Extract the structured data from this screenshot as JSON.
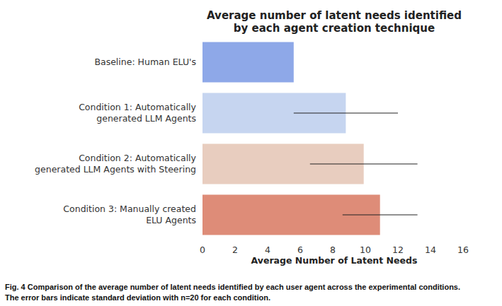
{
  "chart_data": {
    "type": "bar",
    "orientation": "horizontal",
    "title": "Average number of latent needs identified\nby each agent creation technique",
    "categories": [
      "Baseline: Human ELU's",
      "Condition 1: Automatically\ngenerated LLM Agents",
      "Condition 2: Automatically\ngenerated LLM Agents with Steering",
      "Condition 3: Manually created\nELU Agents"
    ],
    "values": [
      5.6,
      8.8,
      9.9,
      10.9
    ],
    "errors": [
      null,
      3.2,
      3.3,
      2.3
    ],
    "colors": [
      "#8ea8e8",
      "#c6d5f0",
      "#e8cdbf",
      "#de8c78"
    ],
    "x_label": "Average Number of Latent Needs",
    "xlim": [
      0,
      16
    ],
    "xticks": [
      0,
      2,
      4,
      6,
      8,
      10,
      12,
      14,
      16
    ],
    "grid": false,
    "caption": "Fig. 4    Comparison of the average number of latent needs identified by each user agent across the experimental conditions.\nThe error bars indicate standard deviation with n=20 for each condition."
  }
}
